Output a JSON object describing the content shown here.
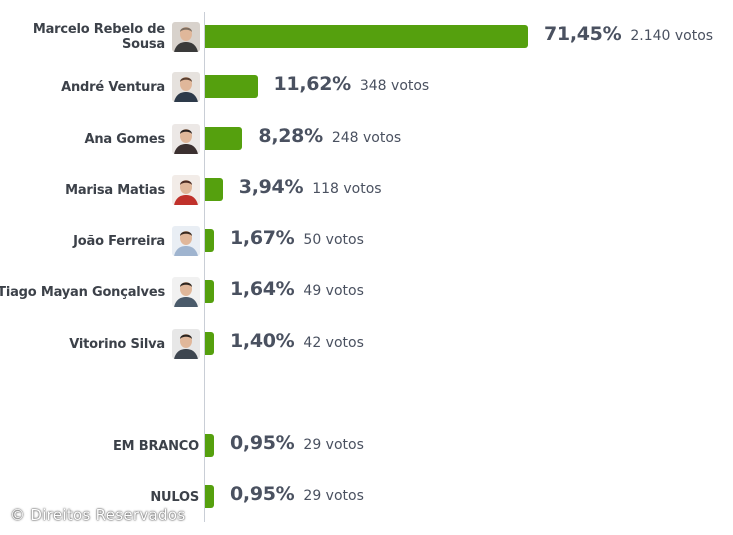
{
  "chart_data": {
    "type": "bar",
    "orientation": "horizontal",
    "categories": [
      "Marcelo Rebelo de Sousa",
      "André Ventura",
      "Ana Gomes",
      "Marisa Matias",
      "João Ferreira",
      "Tiago Mayan Gonçalves",
      "Vitorino Silva",
      "EM BRANCO",
      "NULOS"
    ],
    "values": [
      71.45,
      11.62,
      8.28,
      3.94,
      1.67,
      1.64,
      1.4,
      0.95,
      0.95
    ],
    "value_labels": [
      "71,45%",
      "11,62%",
      "8,28%",
      "3,94%",
      "1,67%",
      "1,64%",
      "1,40%",
      "0,95%",
      "0,95%"
    ],
    "votes": [
      "2.140 votos",
      "348 votos",
      "248 votos",
      "118 votos",
      "50 votos",
      "49 votos",
      "42 votos",
      "29 votos",
      "29 votos"
    ],
    "has_photo": [
      true,
      true,
      true,
      true,
      true,
      true,
      true,
      false,
      false
    ],
    "bar_color": "#55a00e",
    "xlim": [
      0,
      71.45
    ]
  },
  "credit": "© Direitos Reservados"
}
